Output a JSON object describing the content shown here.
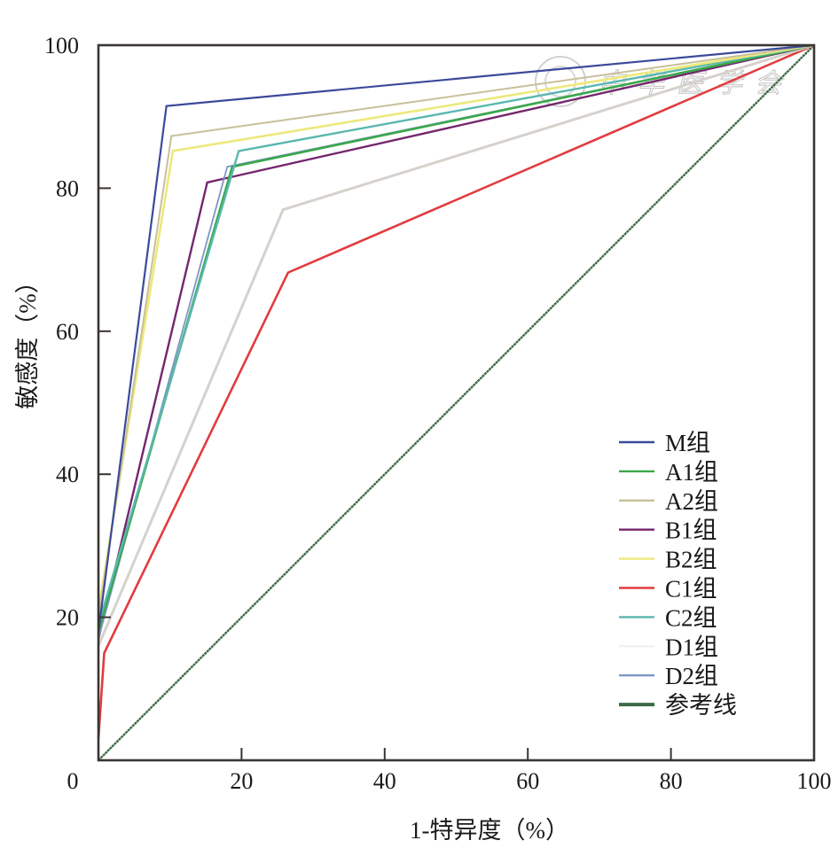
{
  "chart_data": {
    "type": "line",
    "title": "",
    "xlabel": "1-特异度（%）",
    "ylabel": "敏感度（%）",
    "xlim": [
      0,
      100
    ],
    "ylim": [
      0,
      100
    ],
    "x_ticks": [
      "0",
      "20",
      "40",
      "60",
      "80",
      "100"
    ],
    "y_ticks": [
      "20",
      "40",
      "60",
      "80",
      "100"
    ],
    "grid": false,
    "legend_position": "bottom-right",
    "series": [
      {
        "name": "M组",
        "color": "#3b4a9a",
        "width": 2.2,
        "points": [
          [
            0,
            18
          ],
          [
            9.5,
            91.5
          ],
          [
            100,
            100
          ]
        ]
      },
      {
        "name": "A1组",
        "color": "#3aa84a",
        "width": 2.6,
        "points": [
          [
            0,
            18
          ],
          [
            18.7,
            83
          ],
          [
            100,
            100
          ]
        ]
      },
      {
        "name": "A2组",
        "color": "#c8c09a",
        "width": 2.0,
        "points": [
          [
            0,
            20
          ],
          [
            10.2,
            87.3
          ],
          [
            100,
            100
          ]
        ]
      },
      {
        "name": "B1组",
        "color": "#74266e",
        "width": 2.4,
        "points": [
          [
            0,
            17
          ],
          [
            15.2,
            80.8
          ],
          [
            100,
            100
          ]
        ]
      },
      {
        "name": "B2组",
        "color": "#ece97a",
        "width": 2.6,
        "points": [
          [
            0,
            21
          ],
          [
            10.4,
            85.2
          ],
          [
            100,
            100
          ]
        ]
      },
      {
        "name": "C1组",
        "color": "#e23b3f",
        "width": 2.6,
        "points": [
          [
            0,
            3
          ],
          [
            0.8,
            15
          ],
          [
            26.5,
            68.2
          ],
          [
            100,
            100
          ]
        ]
      },
      {
        "name": "C2组",
        "color": "#5ab8ae",
        "width": 2.4,
        "points": [
          [
            0,
            19
          ],
          [
            19.6,
            85.2
          ],
          [
            100,
            100
          ]
        ]
      },
      {
        "name": "D1组",
        "color": "#d6d1cc",
        "legend_color": "#f3f1ef",
        "width": 3.0,
        "points": [
          [
            0,
            16
          ],
          [
            25.8,
            77
          ],
          [
            100,
            100
          ]
        ]
      },
      {
        "name": "D2组",
        "color": "#7e97c8",
        "width": 1.8,
        "points": [
          [
            0,
            17
          ],
          [
            18,
            83
          ],
          [
            100,
            100
          ]
        ]
      },
      {
        "name": "参考线",
        "color": "#3d6b46",
        "width": 2.4,
        "points": [
          [
            0,
            0
          ],
          [
            100,
            100
          ]
        ]
      }
    ]
  },
  "watermark": {
    "text": "中华医学会"
  }
}
